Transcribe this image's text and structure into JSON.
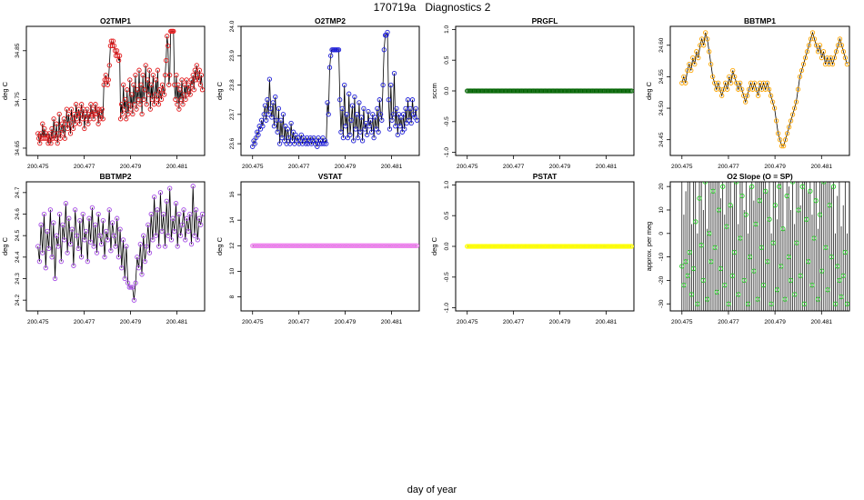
{
  "page": {
    "title": "170719a   Diagnostics 2",
    "xlabel": "day of year"
  },
  "chart_data": [
    {
      "id": "o2tmp1",
      "type": "line",
      "title": "O2TMP1",
      "ylabel": "deg C",
      "xlim": [
        200.4745,
        200.4822
      ],
      "ylim": [
        34.635,
        34.9
      ],
      "xticks": [
        "200.475",
        "200.477",
        "200.479",
        "200.481"
      ],
      "yticks": [
        "34.65",
        "34.75",
        "34.85"
      ],
      "color": "#e41a1c",
      "series": [
        {
          "name": "O2TMP1",
          "x_range": [
            200.475,
            200.4821
          ],
          "values": [
            34.68,
            34.67,
            34.66,
            34.68,
            34.67,
            34.7,
            34.67,
            34.69,
            34.67,
            34.68,
            34.67,
            34.66,
            34.68,
            34.67,
            34.66,
            34.69,
            34.67,
            34.71,
            34.68,
            34.67,
            34.7,
            34.66,
            34.68,
            34.72,
            34.67,
            34.69,
            34.7,
            34.68,
            34.71,
            34.67,
            34.7,
            34.73,
            34.69,
            34.72,
            34.7,
            34.68,
            34.73,
            34.71,
            34.69,
            34.72,
            34.7,
            34.74,
            34.71,
            34.72,
            34.73,
            34.7,
            34.72,
            34.74,
            34.71,
            34.73,
            34.69,
            34.72,
            34.71,
            34.73,
            34.7,
            34.72,
            34.71,
            34.74,
            34.72,
            34.73,
            34.71,
            34.72,
            34.74,
            34.72,
            34.73,
            34.7,
            34.73,
            34.71,
            34.72,
            34.73,
            34.71,
            34.78,
            34.79,
            34.8,
            34.79,
            34.78,
            34.79,
            34.82,
            34.86,
            34.87,
            34.86,
            34.87,
            34.86,
            34.85,
            34.84,
            34.85,
            34.84,
            34.83,
            34.84,
            34.71,
            34.74,
            34.72,
            34.78,
            34.73,
            34.75,
            34.71,
            34.77,
            34.72,
            34.74,
            34.79,
            34.73,
            34.76,
            34.72,
            34.78,
            34.74,
            34.8,
            34.73,
            34.77,
            34.75,
            34.81,
            34.74,
            34.78,
            34.72,
            34.8,
            34.75,
            34.77,
            34.82,
            34.74,
            34.79,
            34.76,
            34.81,
            34.73,
            34.78,
            34.75,
            34.8,
            34.74,
            34.76,
            34.79,
            34.75,
            34.81,
            34.74,
            34.77,
            34.76,
            34.75,
            34.78,
            34.77,
            34.76,
            34.8,
            34.83,
            34.88,
            34.86,
            34.78,
            34.8,
            34.89,
            34.89,
            34.89,
            34.89,
            34.78,
            34.75,
            34.8,
            34.74,
            34.78,
            34.73,
            34.77,
            34.75,
            34.79,
            34.74,
            34.76,
            34.78,
            34.75,
            34.79,
            34.76,
            34.78,
            34.77,
            34.76,
            34.79,
            34.78,
            34.8,
            34.77,
            34.81,
            34.79,
            34.82,
            34.8,
            34.79,
            34.81,
            34.78,
            34.8,
            34.77
          ]
        }
      ]
    },
    {
      "id": "o2tmp2",
      "type": "line",
      "title": "O2TMP2",
      "ylabel": "deg C",
      "xlim": [
        200.4745,
        200.4822
      ],
      "ylim": [
        23.56,
        24.0
      ],
      "xticks": [
        "200.475",
        "200.477",
        "200.479",
        "200.481"
      ],
      "yticks": [
        "23.6",
        "23.7",
        "23.8",
        "23.9",
        "24.0"
      ],
      "color": "#1f1fd8",
      "series": [
        {
          "name": "O2TMP2",
          "x_range": [
            200.475,
            200.4821
          ],
          "values": [
            23.59,
            23.61,
            23.6,
            23.62,
            23.64,
            23.63,
            23.66,
            23.65,
            23.68,
            23.66,
            23.7,
            23.73,
            23.68,
            23.75,
            23.7,
            23.82,
            23.72,
            23.69,
            23.74,
            23.66,
            23.76,
            23.68,
            23.64,
            23.72,
            23.6,
            23.68,
            23.62,
            23.7,
            23.61,
            23.66,
            23.6,
            23.65,
            23.62,
            23.6,
            23.67,
            23.61,
            23.64,
            23.6,
            23.63,
            23.61,
            23.62,
            23.6,
            23.61,
            23.63,
            23.6,
            23.62,
            23.61,
            23.6,
            23.62,
            23.6,
            23.61,
            23.62,
            23.6,
            23.61,
            23.62,
            23.6,
            23.61,
            23.59,
            23.62,
            23.6,
            23.61,
            23.6,
            23.62,
            23.6,
            23.61,
            23.6,
            23.74,
            23.7,
            23.86,
            23.9,
            23.92,
            23.92,
            23.92,
            23.92,
            23.92,
            23.92,
            23.92,
            23.75,
            23.64,
            23.72,
            23.62,
            23.8,
            23.66,
            23.7,
            23.62,
            23.77,
            23.63,
            23.68,
            23.73,
            23.61,
            23.76,
            23.65,
            23.7,
            23.62,
            23.74,
            23.64,
            23.69,
            23.61,
            23.72,
            23.65,
            23.67,
            23.63,
            23.71,
            23.66,
            23.68,
            23.64,
            23.7,
            23.62,
            23.69,
            23.65,
            23.72,
            23.64,
            23.75,
            23.7,
            23.68,
            23.8,
            23.92,
            23.97,
            23.97,
            23.98,
            23.75,
            23.65,
            23.8,
            23.68,
            23.7,
            23.84,
            23.66,
            23.72,
            23.63,
            23.7,
            23.66,
            23.69,
            23.64,
            23.7,
            23.65,
            23.72,
            23.67,
            23.75,
            23.68,
            23.72,
            23.67,
            23.75,
            23.7,
            23.69,
            23.72,
            23.68
          ]
        }
      ]
    },
    {
      "id": "prgfl",
      "type": "line",
      "title": "PRGFL",
      "ylabel": "sccm",
      "xlim": [
        200.4745,
        200.4822
      ],
      "ylim": [
        -1.05,
        1.05
      ],
      "xticks": [
        "200.475",
        "200.477",
        "200.479",
        "200.481"
      ],
      "yticks": [
        "-1.0",
        "-0.5",
        "0.0",
        "0.5",
        "1.0"
      ],
      "color": "#006400",
      "series": [
        {
          "name": "PRGFL",
          "x_range": [
            200.475,
            200.4821
          ],
          "constant": 0.0
        }
      ]
    },
    {
      "id": "bbtmp1",
      "type": "line",
      "title": "BBTMP1",
      "ylabel": "deg C",
      "xlim": [
        200.4745,
        200.4822
      ],
      "ylim": [
        24.425,
        24.63
      ],
      "xticks": [
        "200.475",
        "200.477",
        "200.479",
        "200.481"
      ],
      "yticks": [
        "24.45",
        "24.50",
        "24.55",
        "24.60"
      ],
      "color": "#ffa500",
      "series": [
        {
          "name": "BBTMP1",
          "x_range": [
            200.475,
            200.4821
          ],
          "values": [
            24.54,
            24.55,
            24.54,
            24.56,
            24.57,
            24.56,
            24.58,
            24.57,
            24.59,
            24.58,
            24.6,
            24.61,
            24.6,
            24.62,
            24.61,
            24.59,
            24.57,
            24.55,
            24.54,
            24.53,
            24.54,
            24.53,
            24.52,
            24.53,
            24.54,
            24.53,
            24.55,
            24.54,
            24.56,
            24.55,
            24.54,
            24.53,
            24.54,
            24.53,
            24.52,
            24.51,
            24.52,
            24.53,
            24.54,
            24.53,
            24.54,
            24.53,
            24.52,
            24.54,
            24.53,
            24.54,
            24.53,
            24.54,
            24.53,
            24.52,
            24.51,
            24.5,
            24.48,
            24.46,
            24.45,
            24.44,
            24.44,
            24.45,
            24.46,
            24.47,
            24.48,
            24.49,
            24.5,
            24.51,
            24.53,
            24.55,
            24.56,
            24.57,
            24.58,
            24.59,
            24.6,
            24.61,
            24.62,
            24.61,
            24.6,
            24.59,
            24.6,
            24.58,
            24.59,
            24.57,
            24.58,
            24.57,
            24.58,
            24.57,
            24.58,
            24.59,
            24.6,
            24.61,
            24.6,
            24.59,
            24.58,
            24.57
          ]
        }
      ]
    },
    {
      "id": "bbtmp2",
      "type": "line",
      "title": "BBTMP2",
      "ylabel": "deg C",
      "xlim": [
        200.4745,
        200.4822
      ],
      "ylim": [
        24.15,
        24.75
      ],
      "xticks": [
        "200.475",
        "200.477",
        "200.479",
        "200.481"
      ],
      "yticks": [
        "24.2",
        "24.3",
        "24.4",
        "24.5",
        "24.6",
        "24.7"
      ],
      "color": "#a64de6",
      "series": [
        {
          "name": "BBTMP2",
          "x_range": [
            200.475,
            200.4821
          ],
          "values": [
            24.45,
            24.38,
            24.55,
            24.42,
            24.6,
            24.35,
            24.52,
            24.44,
            24.62,
            24.4,
            24.56,
            24.3,
            24.5,
            24.45,
            24.6,
            24.38,
            24.55,
            24.48,
            24.65,
            24.42,
            24.58,
            24.46,
            24.53,
            24.36,
            24.62,
            24.5,
            24.44,
            24.57,
            24.4,
            24.6,
            24.48,
            24.52,
            24.38,
            24.58,
            24.47,
            24.63,
            24.45,
            24.55,
            24.42,
            24.6,
            24.5,
            24.46,
            24.57,
            24.4,
            24.52,
            24.48,
            24.62,
            24.43,
            24.56,
            24.5,
            24.45,
            24.58,
            24.4,
            24.53,
            24.35,
            24.48,
            24.3,
            24.45,
            24.28,
            24.26,
            24.26,
            24.26,
            24.2,
            24.28,
            24.4,
            24.35,
            24.46,
            24.32,
            24.5,
            24.38,
            24.45,
            24.55,
            24.42,
            24.6,
            24.48,
            24.68,
            24.5,
            24.62,
            24.45,
            24.7,
            24.52,
            24.6,
            24.45,
            24.66,
            24.5,
            24.72,
            24.48,
            24.58,
            24.52,
            24.65,
            24.45,
            24.6,
            24.5,
            24.55,
            24.62,
            24.48,
            24.58,
            24.52,
            24.6,
            24.46,
            24.73,
            24.5,
            24.62,
            24.48,
            24.58,
            24.55,
            24.6
          ]
        }
      ]
    },
    {
      "id": "vstat",
      "type": "line",
      "title": "VSTAT",
      "ylabel": "deg C",
      "xlim": [
        200.4745,
        200.4822
      ],
      "ylim": [
        6.9,
        17.0
      ],
      "xticks": [
        "200.475",
        "200.477",
        "200.479",
        "200.481"
      ],
      "yticks": [
        "8",
        "10",
        "12",
        "14",
        "16"
      ],
      "color": "#ee82ee",
      "series": [
        {
          "name": "VSTAT",
          "x_range": [
            200.475,
            200.4821
          ],
          "constant": 12.0
        }
      ]
    },
    {
      "id": "pstat",
      "type": "line",
      "title": "PSTAT",
      "ylabel": "deg C",
      "xlim": [
        200.4745,
        200.4822
      ],
      "ylim": [
        -1.05,
        1.05
      ],
      "xticks": [
        "200.475",
        "200.477",
        "200.479",
        "200.481"
      ],
      "yticks": [
        "-1.0",
        "-0.5",
        "0.0",
        "0.5",
        "1.0"
      ],
      "color": "#ffff00",
      "series": [
        {
          "name": "PSTAT",
          "x_range": [
            200.475,
            200.4821
          ],
          "constant": 0.0
        }
      ]
    },
    {
      "id": "o2slope",
      "type": "line",
      "title": "O2 Slope (O = SP)",
      "ylabel": "approx. per meg",
      "xlim": [
        200.4745,
        200.4822
      ],
      "ylim": [
        -33,
        22
      ],
      "xticks": [
        "200.475",
        "200.477",
        "200.479",
        "200.481"
      ],
      "yticks": [
        "-30",
        "-20",
        "-10",
        "0",
        "10",
        "20"
      ],
      "color": "#22cc22",
      "series": [
        {
          "name": "O2 Slope",
          "x_range": [
            200.475,
            200.4821
          ],
          "values": [
            -14,
            -22,
            -12,
            -18,
            -8,
            -26,
            -15,
            5,
            -30,
            15,
            -5,
            -20,
            22,
            -28,
            0,
            -12,
            18,
            -6,
            -25,
            10,
            -15,
            20,
            -22,
            3,
            -30,
            12,
            -18,
            -8,
            22,
            -26,
            -2,
            16,
            -20,
            8,
            -30,
            -10,
            20,
            -16,
            4,
            -28,
            14,
            -6,
            -22,
            18,
            -12,
            6,
            -30,
            -4,
            12,
            -24,
            20,
            -14,
            2,
            -28,
            16,
            -10,
            -20,
            22,
            -26,
            -4,
            10,
            -18,
            20,
            -30,
            6,
            -12,
            18,
            -22,
            -2,
            14,
            -28,
            8,
            -16,
            22,
            -6,
            -24,
            12,
            -10,
            20,
            -30,
            -14,
            -20,
            -27,
            -18,
            -8,
            -30
          ]
        }
      ]
    }
  ]
}
